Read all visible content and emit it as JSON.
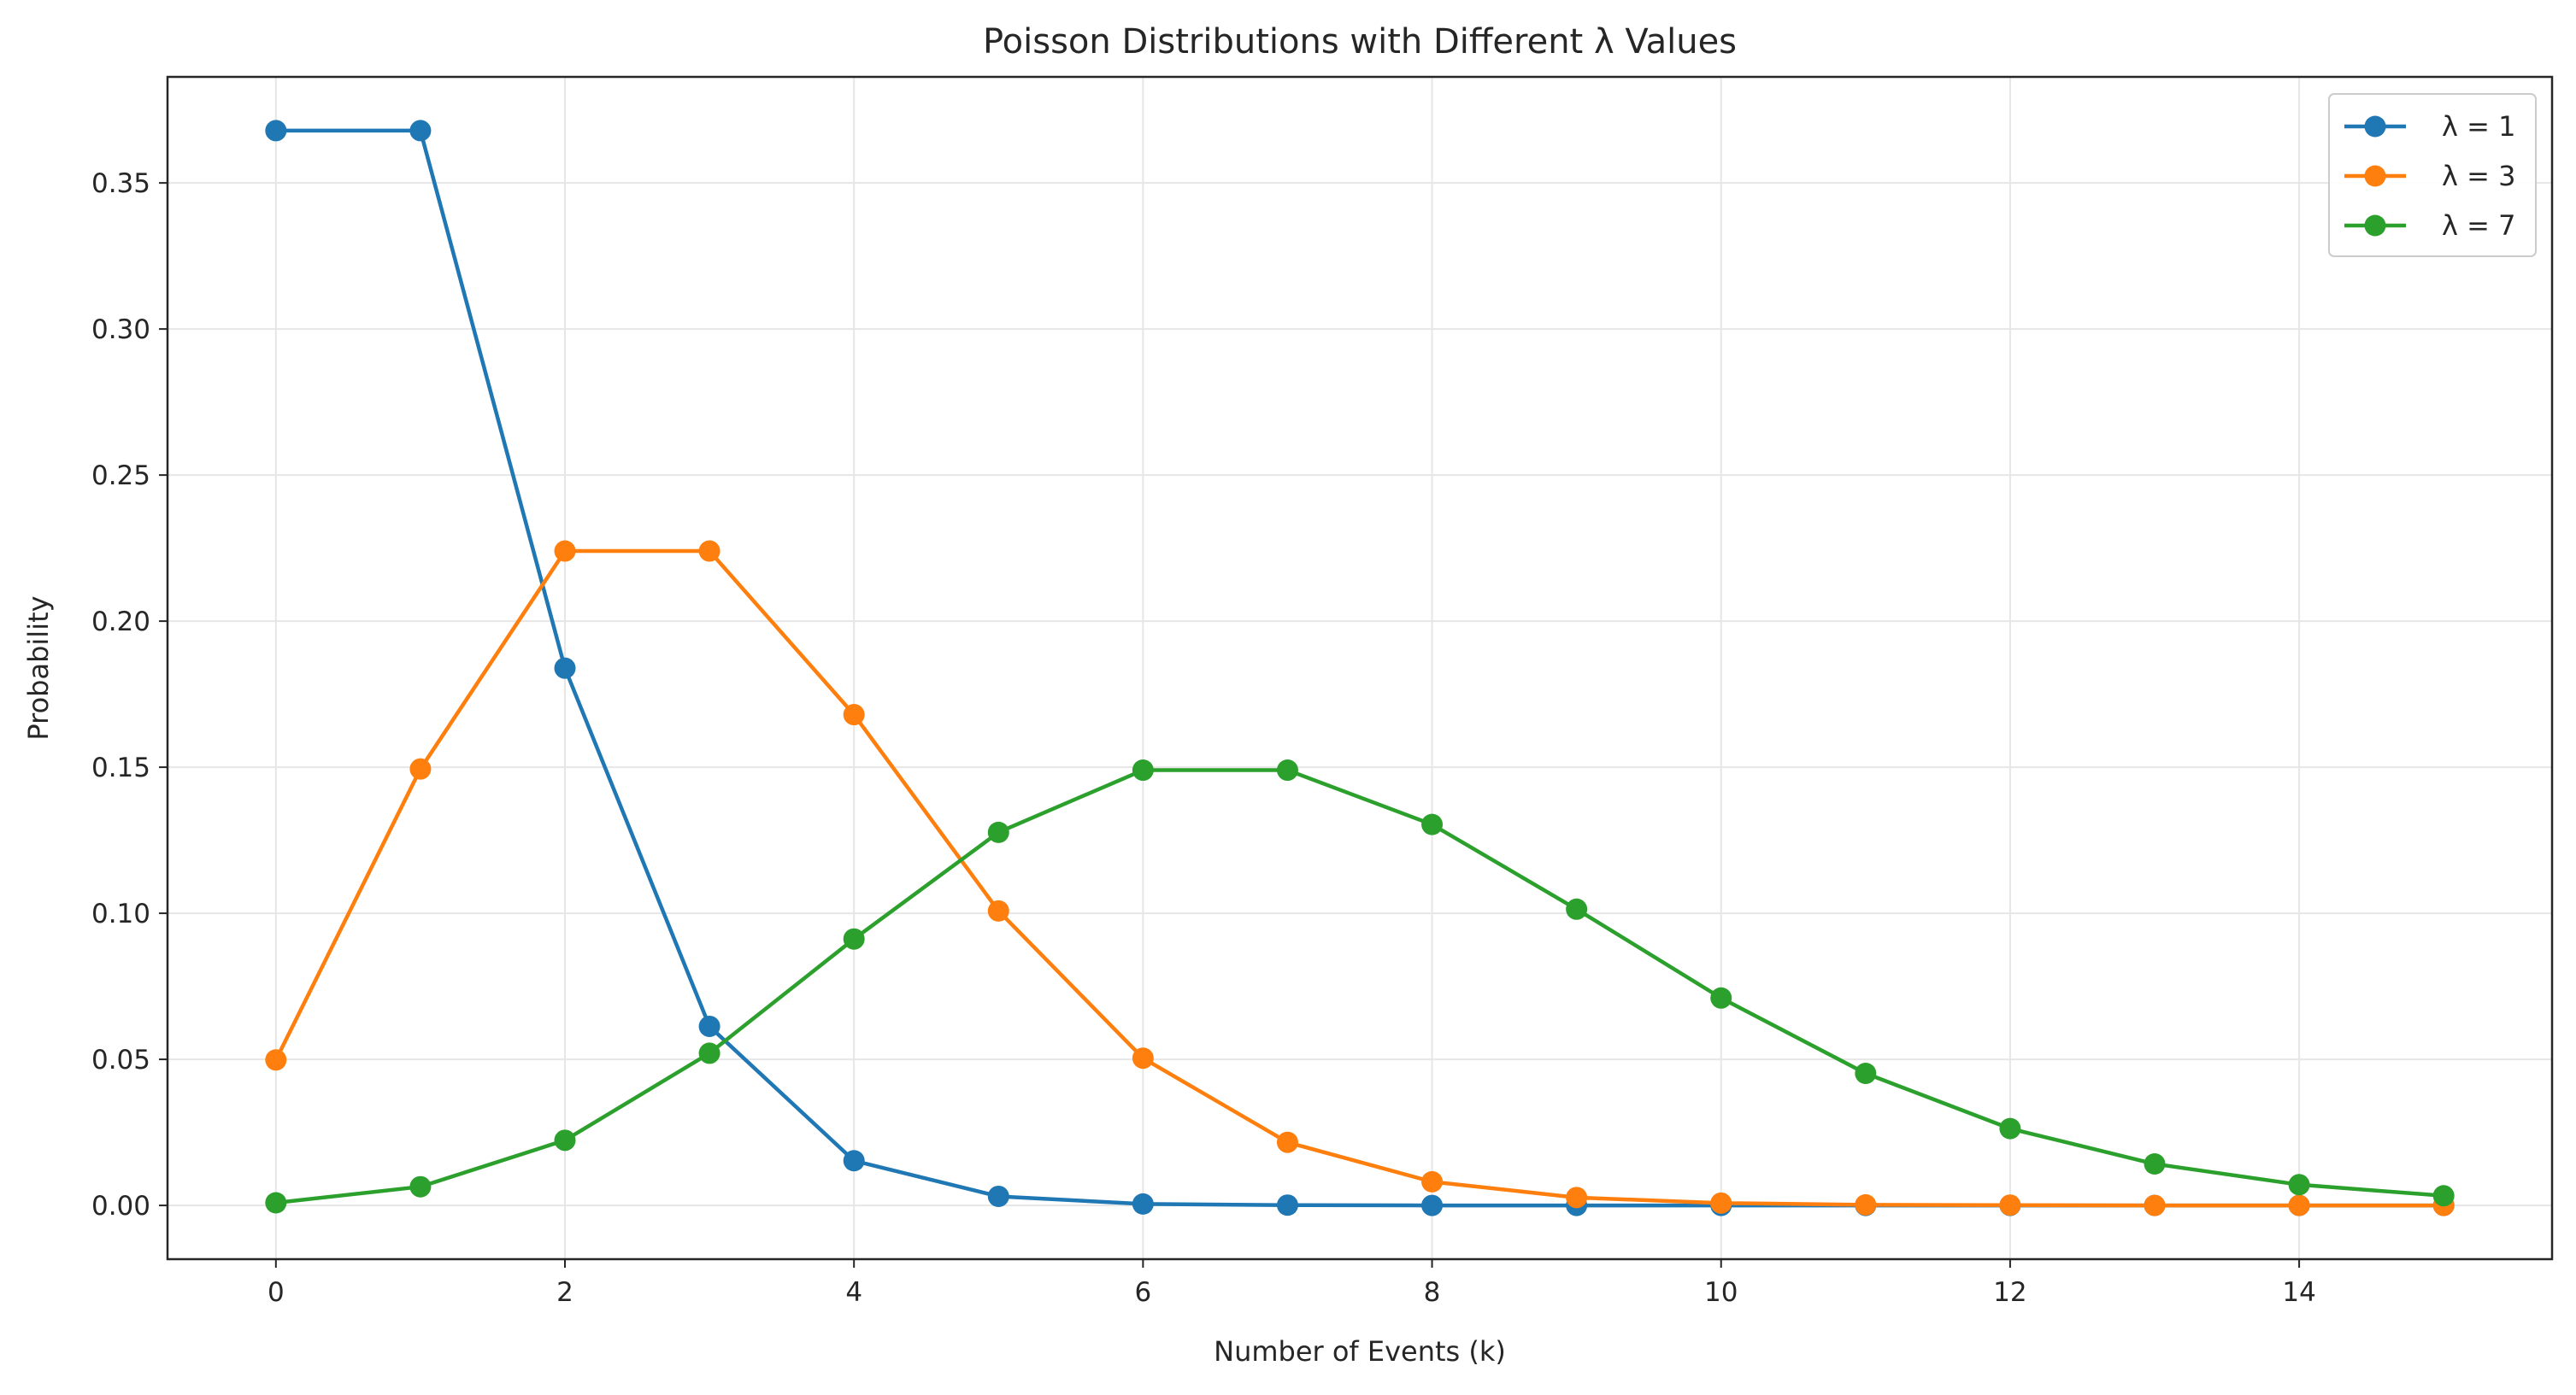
{
  "chart_data": {
    "type": "line",
    "title": "Poisson Distributions with Different λ Values",
    "xlabel": "Number of Events (k)",
    "ylabel": "Probability",
    "xlim": [
      -0.75,
      15.75
    ],
    "ylim": [
      -0.0184,
      0.3863
    ],
    "xticks": [
      0,
      2,
      4,
      6,
      8,
      10,
      12,
      14
    ],
    "xtick_labels": [
      "0",
      "2",
      "4",
      "6",
      "8",
      "10",
      "12",
      "14"
    ],
    "yticks": [
      0.0,
      0.05,
      0.1,
      0.15,
      0.2,
      0.25,
      0.3,
      0.35
    ],
    "ytick_labels": [
      "0.00",
      "0.05",
      "0.10",
      "0.15",
      "0.20",
      "0.25",
      "0.30",
      "0.35"
    ],
    "grid": true,
    "legend_position": "top-right",
    "x": [
      0,
      1,
      2,
      3,
      4,
      5,
      6,
      7,
      8,
      9,
      10,
      11,
      12,
      13,
      14,
      15
    ],
    "series": [
      {
        "name": "λ = 1",
        "color": "#1f77b4",
        "values": [
          0.3679,
          0.3679,
          0.1839,
          0.0613,
          0.0153,
          0.0031,
          0.0005,
          0.0001,
          0.0,
          0.0,
          0.0,
          0.0,
          0.0,
          0.0,
          0.0,
          0.0
        ]
      },
      {
        "name": "λ = 3",
        "color": "#ff7f0e",
        "values": [
          0.0498,
          0.1494,
          0.224,
          0.224,
          0.168,
          0.1008,
          0.0504,
          0.0216,
          0.0081,
          0.0027,
          0.0008,
          0.0002,
          0.0001,
          0.0,
          0.0,
          0.0
        ]
      },
      {
        "name": "λ = 7",
        "color": "#2ca02c",
        "values": [
          0.0009,
          0.0064,
          0.0223,
          0.0521,
          0.0912,
          0.1277,
          0.149,
          0.149,
          0.1304,
          0.1014,
          0.071,
          0.0452,
          0.0263,
          0.0142,
          0.0071,
          0.0033
        ]
      }
    ]
  }
}
